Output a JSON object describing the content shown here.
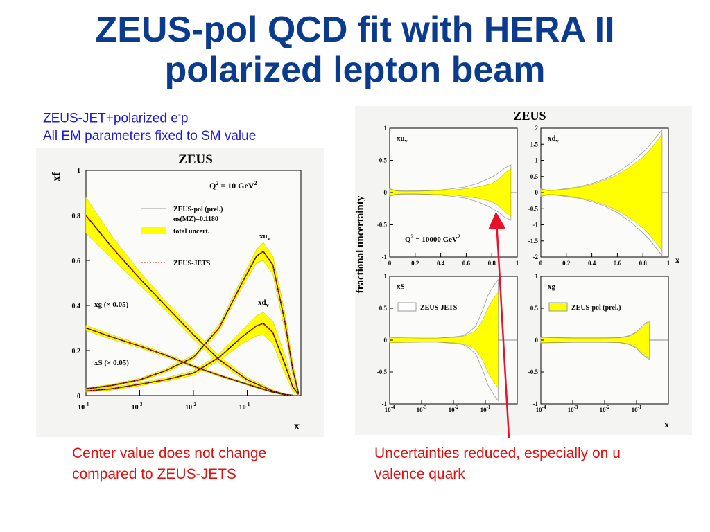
{
  "slide": {
    "title_line1": "ZEUS-pol QCD fit with HERA II",
    "title_line2": "polarized lepton beam",
    "subtitle_line1_main": "ZEUS-JET+polarized e",
    "subtitle_line1_sup": "-",
    "subtitle_line1_end": "p",
    "subtitle_line2": "All EM parameters fixed to SM value",
    "note_left_line1": "Center value does not change",
    "note_left_line2": "compared to ZEUS-JETS",
    "note_right_line1": "Uncertainties reduced, especially on u",
    "note_right_line2": "valence quark",
    "colors": {
      "title": "#0b3b8c",
      "subtitle": "#1a1adc",
      "notes": "#e01010",
      "band": "#ffff00",
      "arrow": "#e8102a"
    }
  },
  "chart_data": [
    {
      "type": "line",
      "title": "ZEUS",
      "xlabel": "x",
      "ylabel": "xf",
      "x_scale": "log",
      "xlim": [
        0.0001,
        1
      ],
      "ylim": [
        0,
        1
      ],
      "xticks": [
        "10-4",
        "10-3",
        "10-2",
        "10-1"
      ],
      "yticks": [
        "0",
        "0.2",
        "0.4",
        "0.6",
        "0.8",
        "1"
      ],
      "annotation": "Q2 = 10 GeV2",
      "legend": [
        "ZEUS-pol (prel.)",
        "αs(MZ)=0.1180",
        "total uncert.",
        "ZEUS-JETS"
      ],
      "legend_position": "top-right",
      "series": [
        {
          "name": "xuv",
          "x": [
            0.0001,
            0.0003,
            0.001,
            0.003,
            0.01,
            0.03,
            0.08,
            0.15,
            0.2,
            0.3,
            0.5,
            0.7,
            0.9
          ],
          "y": [
            0.03,
            0.045,
            0.07,
            0.11,
            0.17,
            0.3,
            0.5,
            0.62,
            0.64,
            0.58,
            0.33,
            0.12,
            0.01
          ],
          "unc": [
            0.004,
            0.005,
            0.006,
            0.008,
            0.01,
            0.015,
            0.02,
            0.03,
            0.04,
            0.04,
            0.04,
            0.03,
            0.01
          ]
        },
        {
          "name": "xdv",
          "x": [
            0.0001,
            0.0003,
            0.001,
            0.003,
            0.01,
            0.03,
            0.08,
            0.15,
            0.2,
            0.3,
            0.5,
            0.7,
            0.9
          ],
          "y": [
            0.02,
            0.03,
            0.05,
            0.07,
            0.1,
            0.17,
            0.26,
            0.31,
            0.32,
            0.28,
            0.14,
            0.04,
            0.005
          ],
          "unc": [
            0.005,
            0.006,
            0.007,
            0.008,
            0.01,
            0.015,
            0.03,
            0.045,
            0.05,
            0.05,
            0.04,
            0.02,
            0.005
          ]
        },
        {
          "name": "xg (× 0.05)",
          "x": [
            0.0001,
            0.0003,
            0.001,
            0.003,
            0.01,
            0.03,
            0.1,
            0.3,
            0.5,
            0.7
          ],
          "y": [
            0.8,
            0.66,
            0.52,
            0.4,
            0.27,
            0.16,
            0.07,
            0.02,
            0.005,
            0.001
          ],
          "unc": [
            0.08,
            0.05,
            0.03,
            0.02,
            0.02,
            0.015,
            0.01,
            0.006,
            0.003,
            0.001
          ]
        },
        {
          "name": "xS (× 0.05)",
          "x": [
            0.0001,
            0.0003,
            0.001,
            0.003,
            0.01,
            0.03,
            0.1,
            0.3,
            0.5,
            0.7
          ],
          "y": [
            0.3,
            0.26,
            0.22,
            0.18,
            0.13,
            0.09,
            0.05,
            0.015,
            0.004,
            0.001
          ],
          "unc": [
            0.012,
            0.01,
            0.008,
            0.007,
            0.006,
            0.005,
            0.004,
            0.003,
            0.002,
            0.001
          ]
        }
      ]
    },
    {
      "type": "area",
      "title": "ZEUS",
      "ylabel": "fractional uncertainty",
      "annotation": "Q2 = 10000 GeV2",
      "panels": [
        {
          "name": "xuv",
          "x_scale": "linear",
          "xlim": [
            0,
            1
          ],
          "ylim": [
            -1,
            1
          ],
          "xticks": [
            "0",
            "0.2",
            "0.4",
            "0.6",
            "0.8",
            "1"
          ],
          "yticks": [
            "-1",
            "-0.5",
            "0",
            "0.5",
            "1"
          ],
          "x": [
            0,
            0.05,
            0.1,
            0.2,
            0.3,
            0.4,
            0.5,
            0.6,
            0.7,
            0.8,
            0.85,
            0.9,
            0.95
          ],
          "pol_unc": [
            0.05,
            0.025,
            0.02,
            0.02,
            0.025,
            0.03,
            0.04,
            0.06,
            0.09,
            0.14,
            0.2,
            0.3,
            0.37
          ],
          "jets_unc": [
            0.06,
            0.03,
            0.025,
            0.025,
            0.03,
            0.04,
            0.06,
            0.09,
            0.15,
            0.24,
            0.3,
            0.38,
            0.43
          ]
        },
        {
          "name": "xdv",
          "x_scale": "linear",
          "xlim": [
            0,
            1
          ],
          "ylim": [
            -2,
            2
          ],
          "xticks": [
            "0",
            "0.2",
            "0.4",
            "0.6",
            "0.8",
            "1"
          ],
          "yticks": [
            "-2",
            "-1.5",
            "-1",
            "-0.5",
            "0",
            "0.5",
            "1",
            "1.5",
            "2"
          ],
          "x": [
            0,
            0.05,
            0.1,
            0.2,
            0.3,
            0.4,
            0.5,
            0.6,
            0.7,
            0.8,
            0.85,
            0.9,
            0.95
          ],
          "pol_unc": [
            0.1,
            0.06,
            0.06,
            0.1,
            0.16,
            0.25,
            0.38,
            0.55,
            0.8,
            1.1,
            1.3,
            1.55,
            1.8
          ],
          "jets_unc": [
            0.12,
            0.07,
            0.07,
            0.12,
            0.18,
            0.28,
            0.42,
            0.62,
            0.9,
            1.25,
            1.45,
            1.7,
            1.95
          ]
        },
        {
          "name": "xS",
          "x_scale": "log",
          "xlim": [
            0.0001,
            1
          ],
          "ylim": [
            -1,
            1
          ],
          "xticks": [
            "10-4",
            "10-3",
            "10-2",
            "10-1"
          ],
          "yticks": [
            "-1",
            "-0.5",
            "0",
            "0.5",
            "1"
          ],
          "legend": "ZEUS-JETS",
          "x": [
            0.0001,
            0.0003,
            0.001,
            0.003,
            0.01,
            0.02,
            0.03,
            0.05,
            0.08,
            0.12,
            0.18,
            0.25
          ],
          "pol_unc": [
            0.04,
            0.035,
            0.03,
            0.03,
            0.04,
            0.06,
            0.09,
            0.15,
            0.3,
            0.5,
            0.65,
            0.75
          ],
          "jets_unc": [
            0.04,
            0.035,
            0.03,
            0.03,
            0.05,
            0.07,
            0.12,
            0.22,
            0.45,
            0.7,
            0.85,
            0.95
          ]
        },
        {
          "name": "xg",
          "x_scale": "log",
          "xlim": [
            0.0001,
            1
          ],
          "ylim": [
            -1,
            1
          ],
          "xticks": [
            "10-4",
            "10-3",
            "10-2",
            "10-1"
          ],
          "yticks": [
            "-1",
            "-0.5",
            "0",
            "0.5",
            "1"
          ],
          "legend": "ZEUS-pol (prel.)",
          "x": [
            0.0001,
            0.0003,
            0.001,
            0.003,
            0.01,
            0.03,
            0.06,
            0.1,
            0.15,
            0.2,
            0.25
          ],
          "pol_unc": [
            0.04,
            0.035,
            0.03,
            0.03,
            0.03,
            0.035,
            0.06,
            0.12,
            0.2,
            0.25,
            0.28
          ],
          "jets_unc": [
            0.045,
            0.04,
            0.035,
            0.035,
            0.035,
            0.04,
            0.07,
            0.13,
            0.22,
            0.27,
            0.3
          ]
        }
      ]
    }
  ]
}
